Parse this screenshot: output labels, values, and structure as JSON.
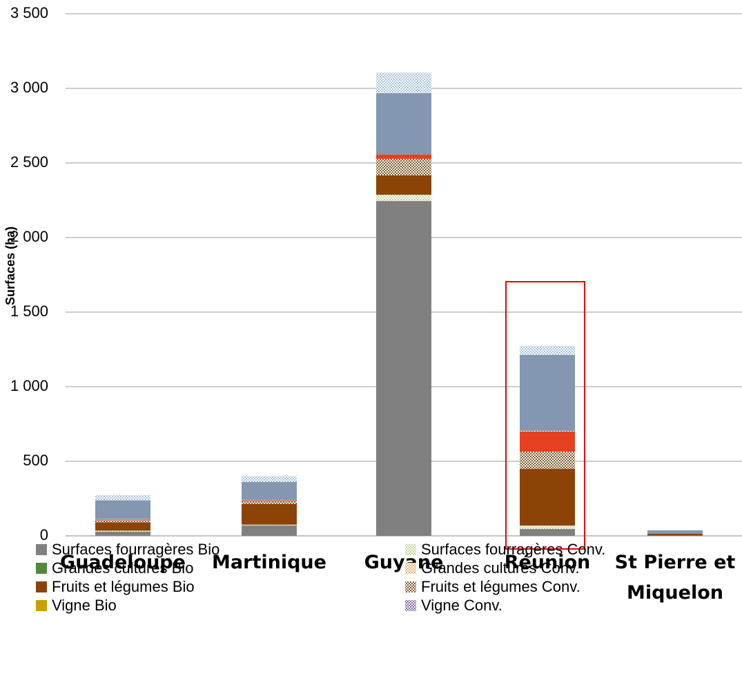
{
  "chart_data": {
    "type": "stacked_bar",
    "y_label": "Surfaces (ha)",
    "categories": [
      "Guadeloupe",
      "Martinique",
      "Guyane",
      "Réunion",
      "St Pierre et Miquelon"
    ],
    "series": [
      {
        "name": "Surfaces fourragères Bio",
        "color": "#808080",
        "hatched": false,
        "values": [
          28,
          70,
          2245,
          46,
          0
        ]
      },
      {
        "name": "Surfaces fourragères Conv.",
        "color": "#c3d69b",
        "hatched": true,
        "values": [
          5,
          3,
          42,
          23,
          0
        ]
      },
      {
        "name": "Grandes cultures Bio",
        "color": "#4f8a3a",
        "hatched": false,
        "values": [
          0,
          0,
          0,
          0,
          0
        ]
      },
      {
        "name": "Grandes cultures Conv.",
        "color": "#e6b475",
        "hatched": true,
        "values": [
          2,
          2,
          0,
          0,
          0
        ]
      },
      {
        "name": "Fruits et légumes Bio",
        "color": "#8b4308",
        "hatched": false,
        "values": [
          55,
          138,
          130,
          380,
          15
        ]
      },
      {
        "name": "Fruits et légumes Conv.",
        "color": "#7a5a2a",
        "hatched": true,
        "values": [
          15,
          18,
          111,
          116,
          0
        ]
      },
      {
        "name": "Vigne Bio",
        "color": "#c9a000",
        "hatched": false,
        "values": [
          0,
          0,
          0,
          0,
          0
        ]
      },
      {
        "name": "Vigne Conv.",
        "color": "#8064a2",
        "hatched": true,
        "values": [
          0,
          0,
          0,
          0,
          0
        ]
      },
      {
        "color": "#e5401f",
        "hatched": false,
        "values": [
          5,
          5,
          28,
          134,
          0
        ]
      },
      {
        "color": "#f08060",
        "hatched": true,
        "values": [
          3,
          3,
          0,
          5,
          0
        ]
      },
      {
        "color": "#8497b0",
        "hatched": false,
        "values": [
          125,
          122,
          412,
          509,
          22
        ]
      },
      {
        "color": "#a9c4d8",
        "hatched": true,
        "values": [
          35,
          40,
          138,
          60,
          0
        ]
      }
    ],
    "ylim": [
      0,
      3500
    ],
    "yticks": [
      0,
      500,
      {
        "value": 1000,
        "label": "1 000"
      },
      {
        "value": 1500,
        "label": "1 500"
      },
      {
        "value": 2000,
        "label": "2 000"
      },
      {
        "value": 2500,
        "label": "2 500"
      },
      {
        "value": 3000,
        "label": "3 000"
      },
      {
        "value": 3500,
        "label": "3 500"
      }
    ],
    "grid": true
  }
}
